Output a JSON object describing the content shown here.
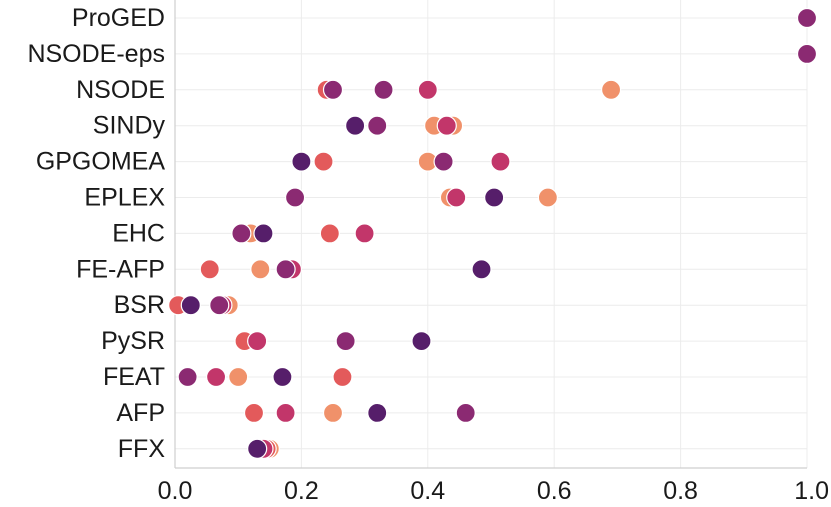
{
  "chart_data": {
    "type": "scatter",
    "orientation": "horizontal-strip",
    "categories": [
      "ProGED",
      "NSODE-eps",
      "NSODE",
      "SINDy",
      "GPGOMEA",
      "EPLEX",
      "EHC",
      "FE-AFP",
      "BSR",
      "PySR",
      "FEAT",
      "AFP",
      "FFX"
    ],
    "xlim": [
      0.0,
      1.0
    ],
    "xticks": [
      "0.0",
      "0.2",
      "0.4",
      "0.6",
      "0.8",
      "1.0"
    ],
    "xtick_values": [
      0.0,
      0.2,
      0.4,
      0.6,
      0.8,
      1.0
    ],
    "grid": true,
    "legend": "none",
    "palette": [
      "#f0916a",
      "#e35a5b",
      "#c2366a",
      "#8b2a72",
      "#561e6a"
    ],
    "points": [
      {
        "category": "ProGED",
        "values": [
          1.0
        ],
        "colors": [
          3
        ]
      },
      {
        "category": "NSODE-eps",
        "values": [
          1.0
        ],
        "colors": [
          3
        ]
      },
      {
        "category": "NSODE",
        "values": [
          0.24,
          0.25,
          0.33,
          0.4,
          0.69
        ],
        "colors": [
          1,
          3,
          3,
          2,
          0
        ]
      },
      {
        "category": "SINDy",
        "values": [
          0.285,
          0.32,
          0.41,
          0.44,
          0.43
        ],
        "colors": [
          4,
          3,
          0,
          0,
          2
        ]
      },
      {
        "category": "GPGOMEA",
        "values": [
          0.2,
          0.235,
          0.4,
          0.425,
          0.515
        ],
        "colors": [
          4,
          1,
          0,
          3,
          2
        ]
      },
      {
        "category": "EPLEX",
        "values": [
          0.19,
          0.435,
          0.445,
          0.505,
          0.59
        ],
        "colors": [
          3,
          0,
          2,
          4,
          0
        ]
      },
      {
        "category": "EHC",
        "values": [
          0.12,
          0.105,
          0.14,
          0.245,
          0.3
        ],
        "colors": [
          0,
          3,
          4,
          1,
          2
        ]
      },
      {
        "category": "FE-AFP",
        "values": [
          0.055,
          0.135,
          0.185,
          0.175,
          0.485
        ],
        "colors": [
          1,
          0,
          2,
          3,
          4
        ]
      },
      {
        "category": "BSR",
        "values": [
          0.005,
          0.085,
          0.025,
          0.075,
          0.07
        ],
        "colors": [
          1,
          0,
          4,
          2,
          3
        ]
      },
      {
        "category": "PySR",
        "values": [
          0.11,
          0.13,
          0.27,
          0.39
        ],
        "colors": [
          1,
          2,
          3,
          4
        ]
      },
      {
        "category": "FEAT",
        "values": [
          0.02,
          0.065,
          0.1,
          0.17,
          0.265
        ],
        "colors": [
          3,
          2,
          0,
          4,
          1
        ]
      },
      {
        "category": "AFP",
        "values": [
          0.125,
          0.175,
          0.25,
          0.32,
          0.46
        ],
        "colors": [
          1,
          2,
          0,
          4,
          3
        ]
      },
      {
        "category": "FFX",
        "values": [
          0.15,
          0.145,
          0.14,
          0.13
        ],
        "colors": [
          0,
          1,
          2,
          4
        ]
      }
    ]
  }
}
